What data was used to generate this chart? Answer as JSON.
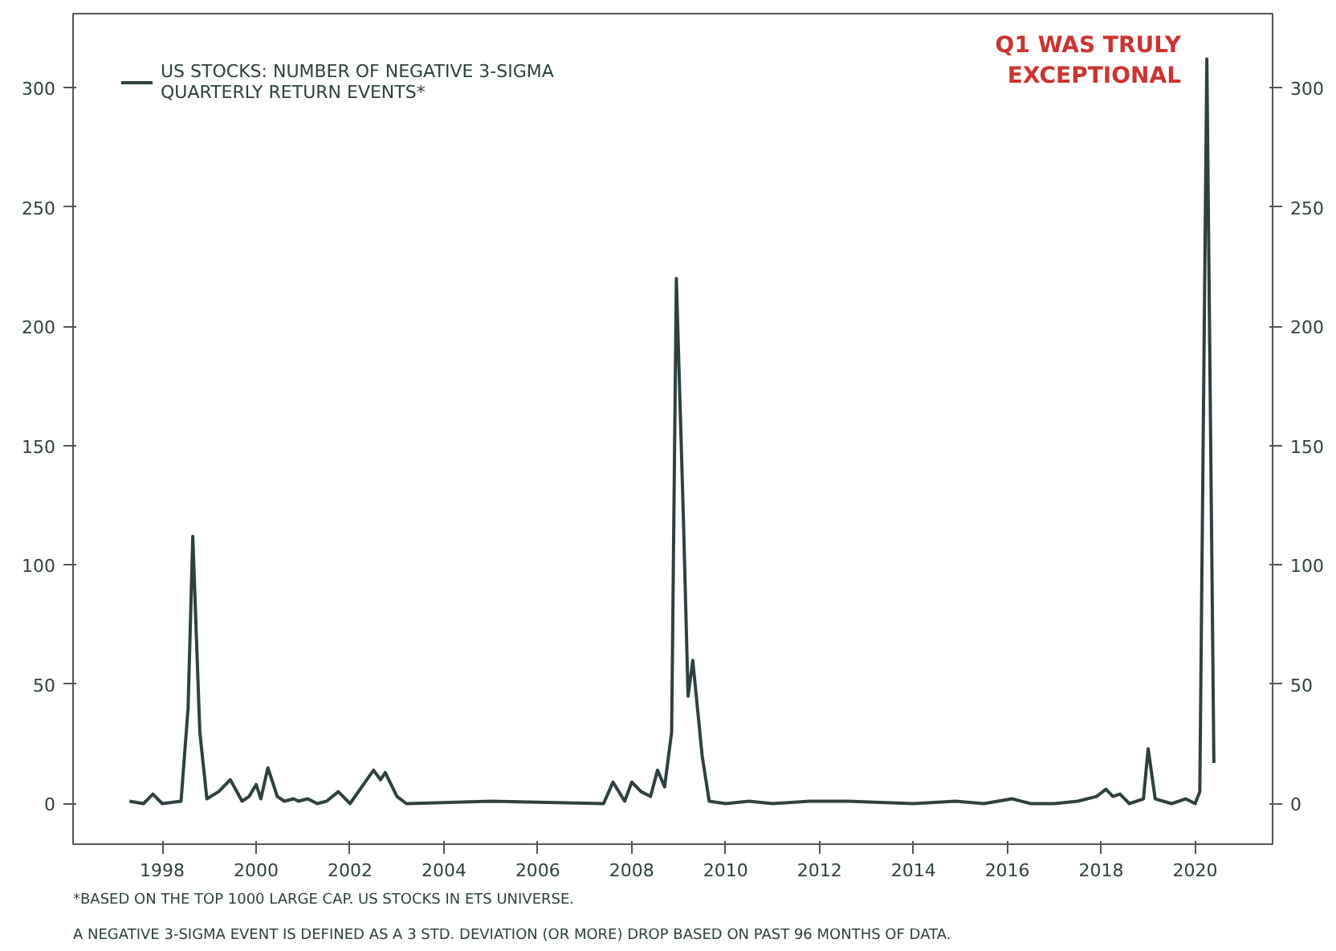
{
  "chart_data": {
    "type": "line",
    "x": [
      1997.3,
      1997.6,
      1997.8,
      1998.0,
      1998.4,
      1998.55,
      1998.65,
      1998.8,
      1998.95,
      1999.2,
      1999.45,
      1999.7,
      1999.85,
      2000.0,
      2000.1,
      2000.25,
      2000.45,
      2000.6,
      2000.8,
      2000.9,
      2001.1,
      2001.3,
      2001.5,
      2001.75,
      2002.0,
      2002.5,
      2002.65,
      2002.75,
      2003.0,
      2003.2,
      2005.0,
      2007.4,
      2007.6,
      2007.85,
      2008.0,
      2008.2,
      2008.4,
      2008.55,
      2008.7,
      2008.85,
      2008.95,
      2009.1,
      2009.2,
      2009.3,
      2009.5,
      2009.65,
      2010.0,
      2010.5,
      2011.0,
      2011.8,
      2012.6,
      2014.0,
      2014.9,
      2015.5,
      2015.8,
      2016.1,
      2016.5,
      2017.0,
      2017.5,
      2017.9,
      2018.1,
      2018.25,
      2018.4,
      2018.6,
      2018.9,
      2019.0,
      2019.15,
      2019.5,
      2019.8,
      2020.0,
      2020.1,
      2020.25,
      2020.4
    ],
    "series": [
      {
        "name": "US STOCKS: NUMBER OF NEGATIVE 3-SIGMA QUARTERLY RETURN EVENTS*",
        "color": "#2f4040",
        "values": [
          1,
          0,
          4,
          0,
          1,
          40,
          112,
          30,
          2,
          5,
          10,
          1,
          3,
          8,
          2,
          15,
          3,
          1,
          2,
          1,
          2,
          0,
          1,
          5,
          0,
          14,
          10,
          13,
          3,
          0,
          1,
          0,
          9,
          1,
          9,
          5,
          3,
          14,
          7,
          30,
          220,
          120,
          45,
          60,
          20,
          1,
          0,
          1,
          0,
          1,
          1,
          0,
          1,
          0,
          1,
          2,
          0,
          0,
          1,
          3,
          6,
          3,
          4,
          0,
          2,
          23,
          2,
          0,
          2,
          0,
          5,
          312,
          17
        ]
      }
    ],
    "xlim": [
      1996.1,
      2021.65
    ],
    "xticks": [
      1998,
      2000,
      2002,
      2004,
      2006,
      2008,
      2010,
      2012,
      2014,
      2016,
      2018,
      2020
    ],
    "ylim": [
      -17,
      331
    ],
    "yticks": [
      0,
      50,
      100,
      150,
      200,
      250,
      300
    ],
    "y2lim": [
      -17,
      331
    ],
    "y2ticks": [
      0,
      50,
      100,
      150,
      200,
      250,
      300
    ],
    "annotations": [
      "Q1 WAS TRULY EXCEPTIONAL",
      "*BASED ON THE TOP 1000 LARGE CAP. US STOCKS IN ETS UNIVERSE.",
      "A NEGATIVE 3-SIGMA EVENT IS DEFINED AS A 3 STD. DEVIATION (OR MORE) DROP BASED ON PAST 96 MONTHS OF DATA."
    ],
    "legend": "top left",
    "grid": false
  }
}
